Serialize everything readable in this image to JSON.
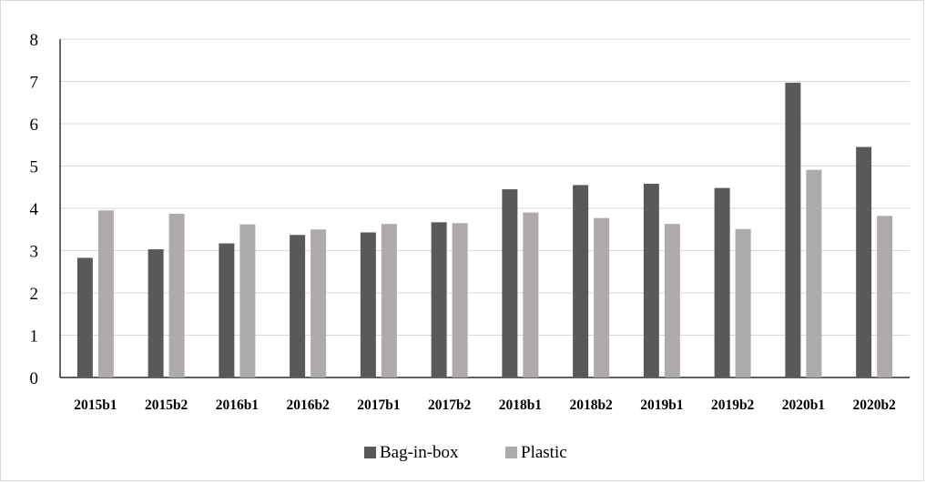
{
  "chart_data": {
    "type": "bar",
    "categories": [
      "2015b1",
      "2015b2",
      "2016b1",
      "2016b2",
      "2017b1",
      "2017b2",
      "2018b1",
      "2018b2",
      "2019b1",
      "2019b2",
      "2020b1",
      "2020b2"
    ],
    "series": [
      {
        "name": "Bag-in-box",
        "color": "#595959",
        "values": [
          2.83,
          3.03,
          3.17,
          3.37,
          3.43,
          3.67,
          4.45,
          4.55,
          4.58,
          4.48,
          6.97,
          5.45
        ]
      },
      {
        "name": "Plastic",
        "color": "#aeaaaa",
        "values": [
          3.95,
          3.87,
          3.62,
          3.5,
          3.63,
          3.65,
          3.9,
          3.77,
          3.63,
          3.51,
          4.91,
          3.82
        ]
      }
    ],
    "title": "",
    "xlabel": "",
    "ylabel": "",
    "ylim": [
      0,
      8
    ],
    "yticks": [
      0,
      1,
      2,
      3,
      4,
      5,
      6,
      7,
      8
    ],
    "grid": true,
    "legend": "bottom"
  }
}
